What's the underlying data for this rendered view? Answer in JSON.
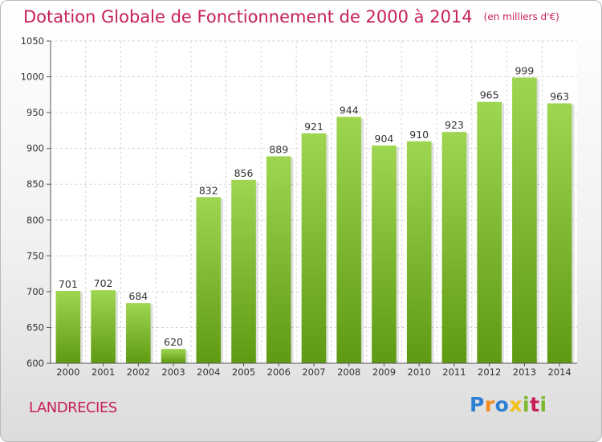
{
  "chart_data": {
    "type": "bar",
    "title": "Dotation Globale de Fonctionnement de 2000 à 2014",
    "subtitle": "(en milliers d'€)",
    "categories": [
      "2000",
      "2001",
      "2002",
      "2003",
      "2004",
      "2005",
      "2006",
      "2007",
      "2008",
      "2009",
      "2010",
      "2011",
      "2012",
      "2013",
      "2014"
    ],
    "values": [
      701,
      702,
      684,
      620,
      832,
      856,
      889,
      921,
      944,
      904,
      910,
      923,
      965,
      999,
      963
    ],
    "ylim": [
      600,
      1050
    ],
    "yticks": [
      600,
      650,
      700,
      750,
      800,
      850,
      900,
      950,
      1000,
      1050
    ],
    "grid": true,
    "bar_color_top": "#9ed651",
    "bar_color_bottom": "#5f9a13",
    "xlabel": "",
    "ylabel": ""
  },
  "footer": {
    "commune": "LANDRECIES",
    "logo_letters": [
      "P",
      "r",
      "o",
      "x",
      "i",
      "t",
      "i"
    ],
    "logo_colors": [
      "#2d7fd3",
      "#f28a1c",
      "#2d7fd3",
      "#f2c018",
      "#7ab82e",
      "#c61f57",
      "#7ab82e"
    ]
  }
}
